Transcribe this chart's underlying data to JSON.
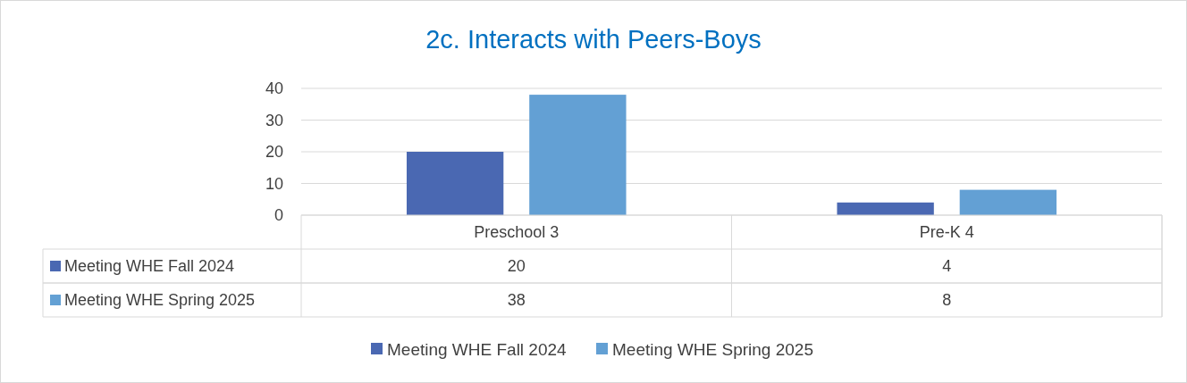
{
  "chart_data": {
    "type": "bar",
    "title": "2c. Interacts with Peers-Boys",
    "categories": [
      "Preschool 3",
      "Pre-K 4"
    ],
    "series": [
      {
        "name": "Meeting WHE Fall 2024",
        "color": "#4a68b2",
        "values": [
          20,
          4
        ]
      },
      {
        "name": "Meeting WHE Spring 2025",
        "color": "#63a0d4",
        "values": [
          38,
          8
        ]
      }
    ],
    "ylim": [
      0,
      40
    ],
    "yticks": [
      0,
      10,
      20,
      30,
      40
    ],
    "grid": "y",
    "legend": "bottom",
    "data_labels": true
  }
}
